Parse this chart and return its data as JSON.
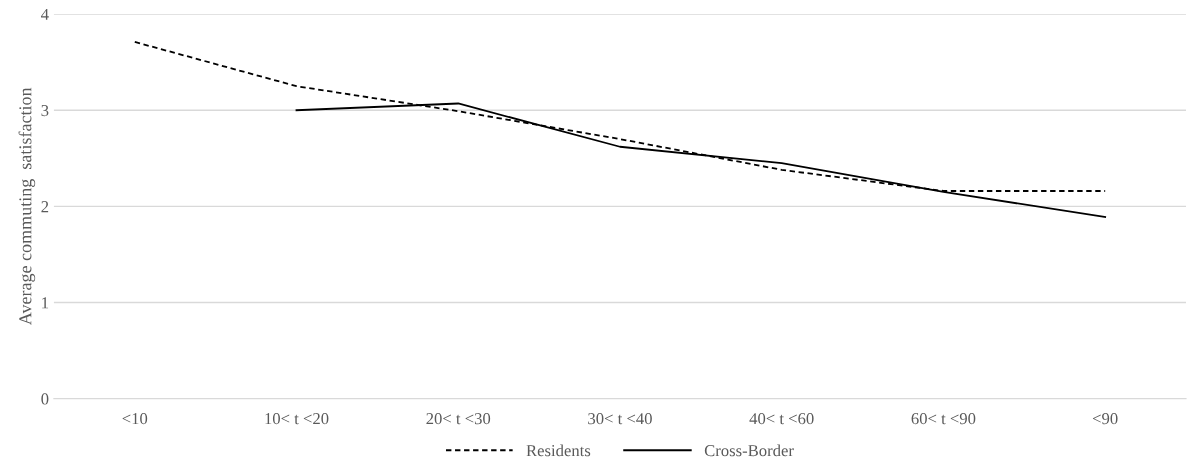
{
  "chart_data": {
    "type": "line",
    "ylabel": "Average commuting  satisfaction",
    "categories": [
      "<10",
      "10< t <20",
      "20< t <30",
      "30< t <40",
      "40< t <60",
      "60< t <90",
      "<90"
    ],
    "series": [
      {
        "name": "Residents",
        "color": "#000000",
        "line_style": "dashed",
        "values": [
          3.71,
          3.25,
          2.99,
          2.7,
          2.38,
          2.16,
          2.16
        ]
      },
      {
        "name": "Cross-Border",
        "color": "#000000",
        "line_style": "solid",
        "values": [
          null,
          3.0,
          3.07,
          2.62,
          2.45,
          2.15,
          1.89
        ]
      }
    ],
    "ylim": [
      0,
      4
    ],
    "yticks": [
      0,
      1,
      2,
      3,
      4
    ],
    "grid": "y",
    "legend": "bottom",
    "marker": "none"
  }
}
